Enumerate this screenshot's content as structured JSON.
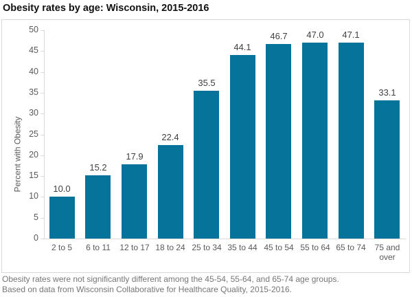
{
  "chart_data": {
    "type": "bar",
    "title": "Obesity rates by age: Wisconsin, 2015-2016",
    "categories": [
      "2 to 5",
      "6 to 11",
      "12 to 17",
      "18 to 24",
      "25 to 34",
      "35 to 44",
      "45 to 54",
      "55 to 64",
      "65 to 74",
      "75 and over"
    ],
    "values": [
      10.0,
      15.2,
      17.9,
      22.4,
      35.5,
      44.1,
      46.7,
      47.0,
      47.1,
      33.1
    ],
    "value_label_decimals": 1,
    "xlabel": "",
    "ylabel": "Percent with Obesity",
    "ylim": [
      0,
      50
    ],
    "ytick_interval": 5,
    "yticks": [
      0,
      5,
      10,
      15,
      20,
      25,
      30,
      35,
      40,
      45,
      50
    ],
    "grid": false,
    "legend": "none",
    "bar_color": "#06739B",
    "axis_color": "#D9D9D9",
    "tick_label_color": "#595959",
    "value_label_color": "#404040",
    "title_color": "#111111",
    "footnote_color": "#767676",
    "footnotes": [
      "Obesity rates were not significantly different among the 45-54, 55-64, and 65-74 age groups.",
      "Based on data from Wisconsin Collaborative for Healthcare Quality, 2015-2016."
    ]
  }
}
